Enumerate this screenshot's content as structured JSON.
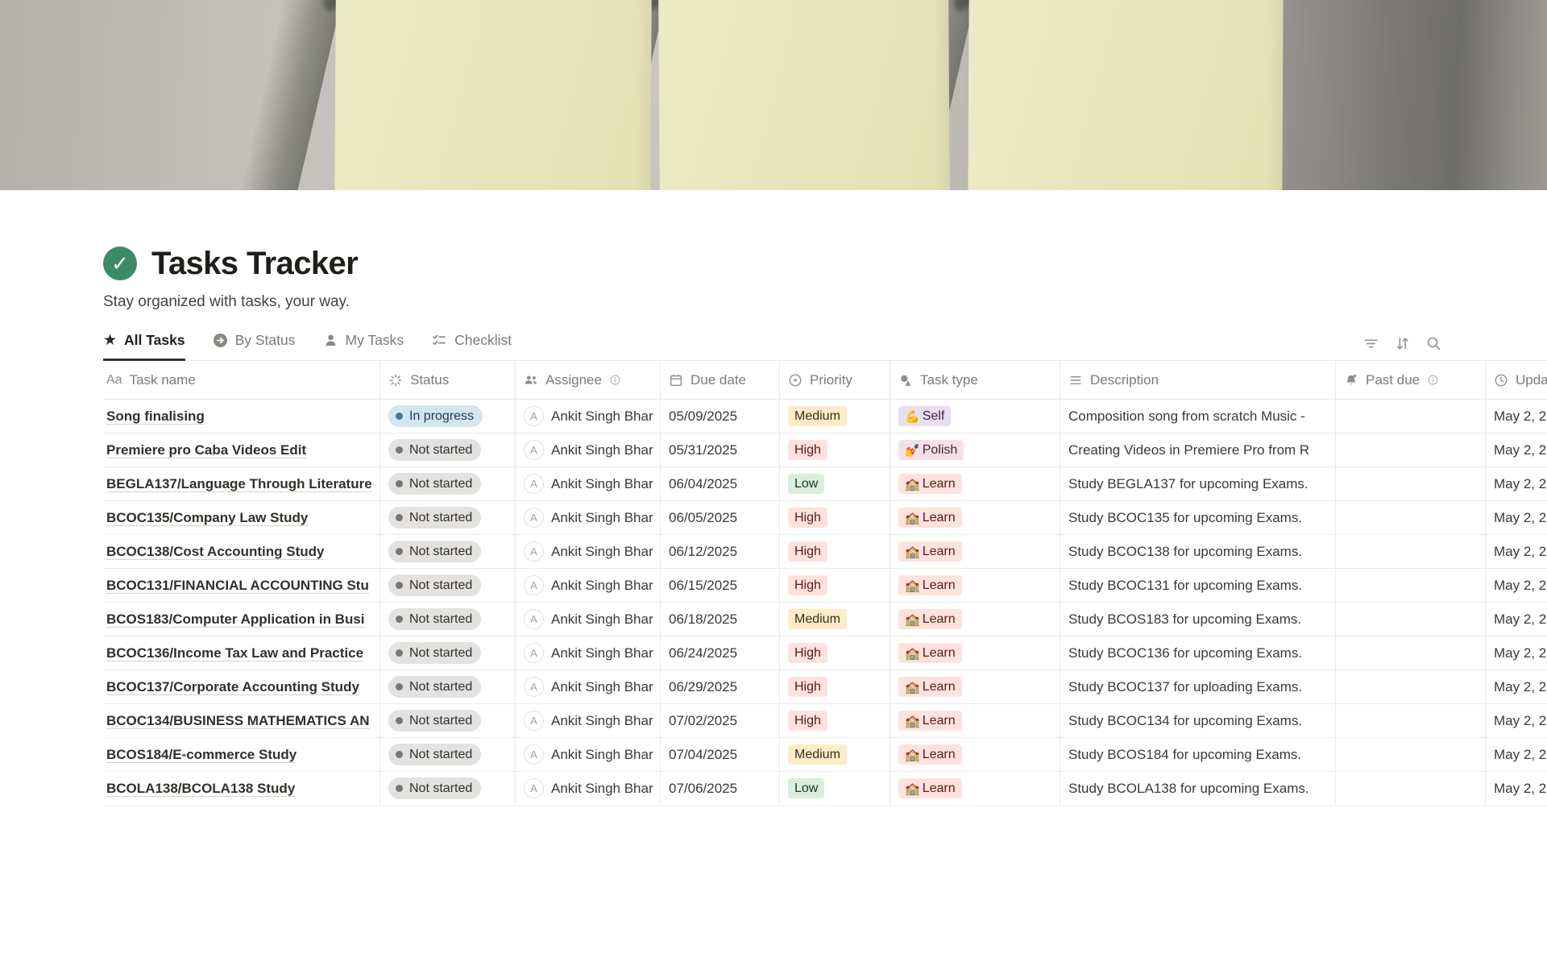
{
  "page": {
    "title": "Tasks Tracker",
    "subtitle": "Stay organized with tasks, your way.",
    "icon": "check-circle-icon",
    "icon_color": "#3d8b63"
  },
  "tabs": [
    {
      "label": "All Tasks",
      "icon": "star-icon",
      "active": true
    },
    {
      "label": "By Status",
      "icon": "status-circle-icon",
      "active": false
    },
    {
      "label": "My Tasks",
      "icon": "person-icon",
      "active": false
    },
    {
      "label": "Checklist",
      "icon": "checklist-icon",
      "active": false
    }
  ],
  "toolbar": [
    {
      "name": "filter-icon"
    },
    {
      "name": "sort-icon"
    },
    {
      "name": "search-icon"
    }
  ],
  "table": {
    "avatar_initial": "A",
    "columns": [
      {
        "label": "Task name",
        "icon": "text-style-icon"
      },
      {
        "label": "Status",
        "icon": "status-spinner-icon"
      },
      {
        "label": "Assignee",
        "icon": "people-icon",
        "info": true
      },
      {
        "label": "Due date",
        "icon": "calendar-icon"
      },
      {
        "label": "Priority",
        "icon": "select-icon"
      },
      {
        "label": "Task type",
        "icon": "shapes-icon"
      },
      {
        "label": "Description",
        "icon": "text-lines-icon"
      },
      {
        "label": "Past due",
        "icon": "bell-icon",
        "info": true
      },
      {
        "label": "Upda",
        "icon": "clock-icon"
      }
    ],
    "rows": [
      {
        "name": "Song finalising",
        "status": "In progress",
        "assignee": "Ankit Singh Bhar",
        "due_date": "05/09/2025",
        "priority": "Medium",
        "task_type": "Self",
        "description": "Composition song from scratch Music -",
        "past_due": "",
        "updated": "May 2, 2"
      },
      {
        "name": "Premiere pro Caba Videos Edit",
        "status": "Not started",
        "assignee": "Ankit Singh Bhar",
        "due_date": "05/31/2025",
        "priority": "High",
        "task_type": "Polish",
        "description": "Creating Videos in Premiere Pro from R",
        "past_due": "",
        "updated": "May 2, 2"
      },
      {
        "name": "BEGLA137/Language Through Literature",
        "status": "Not started",
        "assignee": "Ankit Singh Bhar",
        "due_date": "06/04/2025",
        "priority": "Low",
        "task_type": "Learn",
        "description": "Study BEGLA137 for upcoming Exams.",
        "past_due": "",
        "updated": "May 2, 2"
      },
      {
        "name": "BCOC135/Company Law Study",
        "status": "Not started",
        "assignee": "Ankit Singh Bhar",
        "due_date": "06/05/2025",
        "priority": "High",
        "task_type": "Learn",
        "description": "Study BCOC135 for upcoming Exams.",
        "past_due": "",
        "updated": "May 2, 2"
      },
      {
        "name": "BCOC138/Cost Accounting Study",
        "status": "Not started",
        "assignee": "Ankit Singh Bhar",
        "due_date": "06/12/2025",
        "priority": "High",
        "task_type": "Learn",
        "description": "Study BCOC138 for upcoming Exams.",
        "past_due": "",
        "updated": "May 2, 2"
      },
      {
        "name": "BCOC131/FINANCIAL ACCOUNTING Stu",
        "status": "Not started",
        "assignee": "Ankit Singh Bhar",
        "due_date": "06/15/2025",
        "priority": "High",
        "task_type": "Learn",
        "description": "Study BCOC131 for upcoming Exams.",
        "past_due": "",
        "updated": "May 2, 2"
      },
      {
        "name": "BCOS183/Computer Application in Busi",
        "status": "Not started",
        "assignee": "Ankit Singh Bhar",
        "due_date": "06/18/2025",
        "priority": "Medium",
        "task_type": "Learn",
        "description": "Study BCOS183 for upcoming Exams.",
        "past_due": "",
        "updated": "May 2, 2"
      },
      {
        "name": "BCOC136/Income Tax Law and Practice",
        "status": "Not started",
        "assignee": "Ankit Singh Bhar",
        "due_date": "06/24/2025",
        "priority": "High",
        "task_type": "Learn",
        "description": "Study BCOC136 for upcoming Exams.",
        "past_due": "",
        "updated": "May 2, 2"
      },
      {
        "name": "BCOC137/Corporate Accounting Study",
        "status": "Not started",
        "assignee": "Ankit Singh Bhar",
        "due_date": "06/29/2025",
        "priority": "High",
        "task_type": "Learn",
        "description": "Study BCOC137 for uploading Exams.",
        "past_due": "",
        "updated": "May 2, 2"
      },
      {
        "name": "BCOC134/BUSINESS MATHEMATICS AN",
        "status": "Not started",
        "assignee": "Ankit Singh Bhar",
        "due_date": "07/02/2025",
        "priority": "High",
        "task_type": "Learn",
        "description": "Study BCOC134 for upcoming Exams.",
        "past_due": "",
        "updated": "May 2, 2"
      },
      {
        "name": "BCOS184/E-commerce Study",
        "status": "Not started",
        "assignee": "Ankit Singh Bhar",
        "due_date": "07/04/2025",
        "priority": "Medium",
        "task_type": "Learn",
        "description": "Study BCOS184 for upcoming Exams.",
        "past_due": "",
        "updated": "May 2, 2"
      },
      {
        "name": "BCOLA138/BCOLA138 Study",
        "status": "Not started",
        "assignee": "Ankit Singh Bhar",
        "due_date": "07/06/2025",
        "priority": "Low",
        "task_type": "Learn",
        "description": "Study BCOLA138 for upcoming Exams.",
        "past_due": "",
        "updated": "May 2, 2"
      }
    ]
  },
  "colors": {
    "status": {
      "In progress": {
        "bg": "#d3e5ef",
        "dot": "#337ea9",
        "text": "#1d3c52"
      },
      "Not started": {
        "bg": "#e3e2e0",
        "dot": "#787774",
        "text": "#32302c"
      }
    },
    "priority": {
      "High": {
        "bg": "#ffe2dd",
        "text": "#5d1715"
      },
      "Medium": {
        "bg": "#fdecc8",
        "text": "#402c1b"
      },
      "Low": {
        "bg": "#dbeddb",
        "text": "#1c3829"
      }
    },
    "task_type": {
      "Self": {
        "bg": "#e8deee",
        "text": "#412454",
        "emoji": "💪"
      },
      "Polish": {
        "bg": "#f5e0e9",
        "text": "#4c2337",
        "emoji": "💅"
      },
      "Learn": {
        "bg": "#ffe2dd",
        "text": "#5d1715",
        "emoji": "🏫"
      }
    },
    "cover_note": "#e9e6bd"
  }
}
